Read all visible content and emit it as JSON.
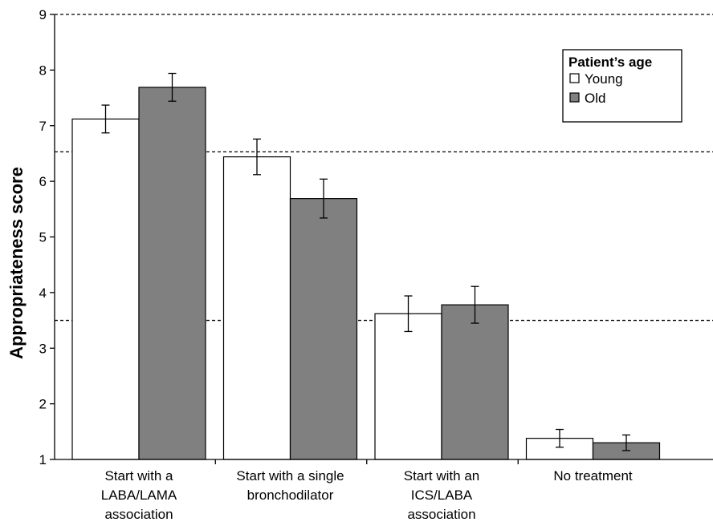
{
  "chart_data": {
    "type": "bar",
    "ylabel": "Appropriateness score",
    "xlabel": "",
    "ylim": [
      1,
      9
    ],
    "yticks": [
      1,
      2,
      3,
      4,
      5,
      6,
      7,
      8,
      9
    ],
    "reference_lines": [
      3.5,
      6.53,
      9
    ],
    "categories": [
      [
        "Start with a",
        "LABA/LAMA",
        "association"
      ],
      [
        "Start with a single",
        "bronchodilator"
      ],
      [
        "Start with an",
        "ICS/LABA",
        "association"
      ],
      [
        "No treatment"
      ]
    ],
    "legend": {
      "title": "Patient’s age",
      "position": "top-right"
    },
    "series": [
      {
        "name": "Young",
        "color": "#ffffff",
        "values": [
          7.12,
          6.44,
          3.62,
          1.38
        ],
        "error": [
          0.25,
          0.32,
          0.32,
          0.16
        ]
      },
      {
        "name": "Old",
        "color": "#808080",
        "values": [
          7.69,
          5.69,
          3.78,
          1.3
        ],
        "error": [
          0.25,
          0.35,
          0.33,
          0.14
        ]
      }
    ]
  }
}
